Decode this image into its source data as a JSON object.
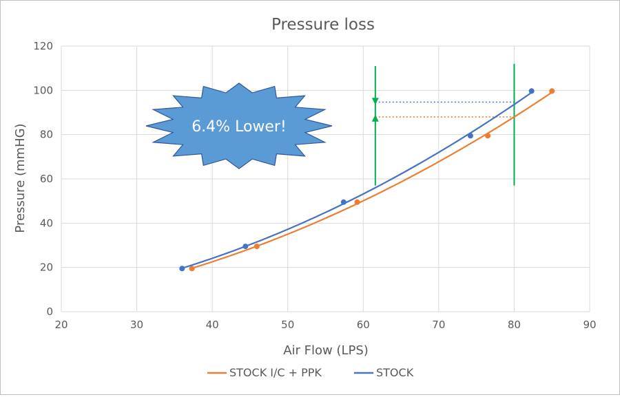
{
  "chart_data": {
    "type": "scatter",
    "title": "Pressure loss",
    "xlabel": "Air Flow (LPS)",
    "ylabel": "Pressure (mmHG)",
    "xlim": [
      20,
      90
    ],
    "ylim": [
      0,
      120
    ],
    "xticks": [
      20,
      30,
      40,
      50,
      60,
      70,
      80,
      90
    ],
    "yticks": [
      0,
      20,
      40,
      60,
      80,
      100,
      120
    ],
    "grid": true,
    "legend_position": "bottom",
    "series": [
      {
        "name": "STOCK I/C + PPK",
        "color": "#ED7D31",
        "trendline": true,
        "points": [
          {
            "x": 37.3,
            "y": 19.5
          },
          {
            "x": 45.9,
            "y": 29.5
          },
          {
            "x": 59.2,
            "y": 49.5
          },
          {
            "x": 76.5,
            "y": 79.5
          },
          {
            "x": 85.0,
            "y": 99.7
          }
        ]
      },
      {
        "name": "STOCK",
        "color": "#4472C4",
        "trendline": true,
        "points": [
          {
            "x": 36.0,
            "y": 19.5
          },
          {
            "x": 44.4,
            "y": 29.5
          },
          {
            "x": 57.4,
            "y": 49.5
          },
          {
            "x": 74.2,
            "y": 79.5
          },
          {
            "x": 82.3,
            "y": 99.7
          }
        ]
      }
    ],
    "annotation": {
      "text": "6.4% Lower!",
      "fill": "#5B9BD5",
      "text_color": "#ffffff"
    },
    "reference_lines": {
      "color": "#00B050",
      "vertical_at_x": [
        61.6,
        80.0
      ],
      "vertical_y_range": [
        [
          57,
          111
        ],
        [
          57,
          112
        ]
      ],
      "arrow_at_x": 61.6,
      "arrow_down_tip_y": 93.5,
      "arrow_up_tip_y": 89.0,
      "dotted_levels": [
        {
          "y": 94.7,
          "x_from": 61.6,
          "x_to": 80.0,
          "color": "#4472C4"
        },
        {
          "y": 88.0,
          "x_from": 61.6,
          "x_to": 80.0,
          "color": "#ED7D31"
        }
      ]
    }
  }
}
